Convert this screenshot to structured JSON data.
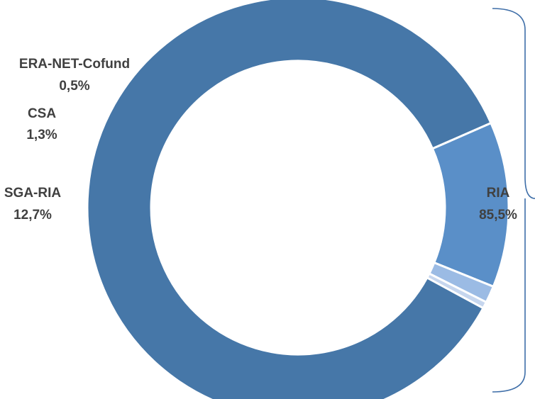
{
  "chart_data": {
    "type": "pie",
    "style": "donut",
    "slices": [
      {
        "label": "RIA",
        "value": 85.5,
        "value_text": "85,5%",
        "color": "#4677A8"
      },
      {
        "label": "SGA-RIA",
        "value": 12.7,
        "value_text": "12,7%",
        "color": "#5A8FC8"
      },
      {
        "label": "CSA",
        "value": 1.3,
        "value_text": "1,3%",
        "color": "#9BBBE4"
      },
      {
        "label": "ERA-NET-Cofund",
        "value": 0.5,
        "value_text": "0,5%",
        "color": "#C6D6EE"
      }
    ],
    "bracket_color": "#3E6EA8"
  }
}
